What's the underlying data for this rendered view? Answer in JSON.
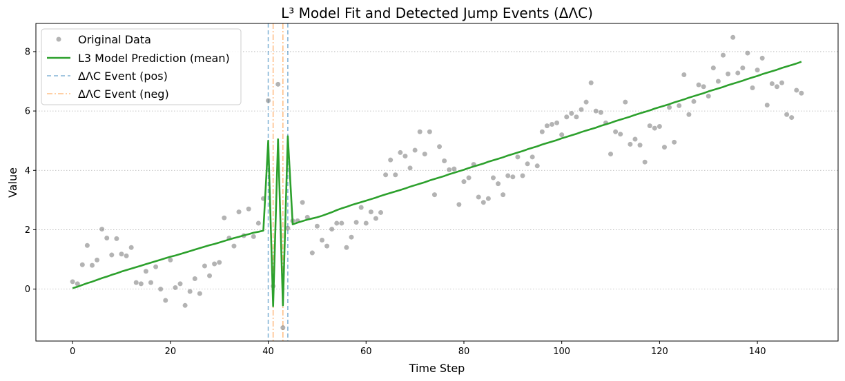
{
  "chart_data": {
    "type": "scatter+line",
    "title": "L³ Model Fit and Detected Jump Events (ΔΛC)",
    "xlabel": "Time Step",
    "ylabel": "Value",
    "xlim": [
      -7.5,
      156.5
    ],
    "ylim": [
      -1.75,
      8.95
    ],
    "xticks": [
      0,
      20,
      40,
      60,
      80,
      100,
      120,
      140
    ],
    "yticks": [
      0,
      2,
      4,
      6,
      8
    ],
    "grid": "horizontal-dotted",
    "legend_position": "top-left",
    "legend": [
      {
        "label": "Original Data",
        "style": "marker"
      },
      {
        "label": "L3 Model Prediction (mean)",
        "style": "line"
      },
      {
        "label": "ΔΛC Event (pos)",
        "style": "dashed"
      },
      {
        "label": "ΔΛC Event (neg)",
        "style": "dashdot"
      }
    ],
    "colors": {
      "scatter": "#808080",
      "model": "#2ca02c",
      "event_pos": "#1f77b4",
      "event_neg": "#ff7f0e"
    },
    "scatter": {
      "name": "Original Data",
      "x": [
        0,
        1,
        2,
        3,
        4,
        5,
        6,
        7,
        8,
        9,
        10,
        11,
        12,
        13,
        14,
        15,
        16,
        17,
        18,
        19,
        20,
        21,
        22,
        23,
        24,
        25,
        26,
        27,
        28,
        29,
        30,
        31,
        32,
        33,
        34,
        35,
        36,
        37,
        38,
        39,
        40,
        41,
        42,
        43,
        44,
        45,
        46,
        47,
        48,
        49,
        50,
        51,
        52,
        53,
        54,
        55,
        56,
        57,
        58,
        59,
        60,
        61,
        62,
        63,
        64,
        65,
        66,
        67,
        68,
        69,
        70,
        71,
        72,
        73,
        74,
        75,
        76,
        77,
        78,
        79,
        80,
        81,
        82,
        83,
        84,
        85,
        86,
        87,
        88,
        89,
        90,
        91,
        92,
        93,
        94,
        95,
        96,
        97,
        98,
        99,
        100,
        101,
        102,
        103,
        104,
        105,
        106,
        107,
        108,
        109,
        110,
        111,
        112,
        113,
        114,
        115,
        116,
        117,
        118,
        119,
        120,
        121,
        122,
        123,
        124,
        125,
        126,
        127,
        128,
        129,
        130,
        131,
        132,
        133,
        134,
        135,
        136,
        137,
        138,
        139,
        140,
        141,
        142,
        143,
        144,
        145,
        146,
        147,
        148,
        149
      ],
      "y": [
        0.25,
        0.18,
        0.82,
        1.47,
        0.8,
        0.98,
        2.02,
        1.72,
        1.15,
        1.7,
        1.18,
        1.12,
        1.4,
        0.22,
        0.18,
        0.6,
        0.22,
        0.75,
        0.0,
        -0.38,
        0.98,
        0.05,
        0.18,
        -0.55,
        -0.08,
        0.35,
        -0.15,
        0.78,
        0.45,
        0.85,
        0.9,
        2.4,
        1.72,
        1.45,
        2.6,
        1.8,
        2.7,
        1.77,
        2.22,
        3.05,
        6.35,
        0.1,
        6.9,
        -1.3,
        2.05,
        2.3,
        2.3,
        2.92,
        2.42,
        1.22,
        2.12,
        1.65,
        1.45,
        2.02,
        2.22,
        2.22,
        1.4,
        1.75,
        2.25,
        2.75,
        2.22,
        2.6,
        2.38,
        2.58,
        3.85,
        4.35,
        3.85,
        4.6,
        4.48,
        4.08,
        4.68,
        5.3,
        4.55,
        5.3,
        3.18,
        4.8,
        4.32,
        4.02,
        4.05,
        2.85,
        3.62,
        3.75,
        4.2,
        3.1,
        2.92,
        3.05,
        3.75,
        3.55,
        3.18,
        3.82,
        3.78,
        4.45,
        3.82,
        4.22,
        4.45,
        4.15,
        5.3,
        5.5,
        5.55,
        5.6,
        5.2,
        5.8,
        5.92,
        5.8,
        6.05,
        6.3,
        6.95,
        6.0,
        5.95,
        5.6,
        4.55,
        5.3,
        5.22,
        6.3,
        4.88,
        5.05,
        4.85,
        4.28,
        5.5,
        5.42,
        5.48,
        4.78,
        6.12,
        4.95,
        6.18,
        7.22,
        5.88,
        6.32,
        6.88,
        6.82,
        6.5,
        7.45,
        7.0,
        7.88,
        7.25,
        8.48,
        7.28,
        7.45,
        7.95,
        6.78,
        7.38,
        7.78,
        6.2,
        6.92,
        6.82,
        6.95,
        5.88,
        5.78,
        6.7,
        6.6
      ]
    },
    "model": {
      "name": "L3 Model Prediction (mean)",
      "x": [
        0,
        1,
        2,
        3,
        4,
        5,
        6,
        7,
        8,
        9,
        10,
        11,
        12,
        13,
        14,
        15,
        16,
        17,
        18,
        19,
        20,
        21,
        22,
        23,
        24,
        25,
        26,
        27,
        28,
        29,
        30,
        31,
        32,
        33,
        34,
        35,
        36,
        37,
        38,
        39,
        40,
        41,
        42,
        43,
        44,
        45,
        46,
        47,
        48,
        49,
        50,
        51,
        52,
        53,
        54,
        55,
        56,
        57,
        58,
        59,
        60,
        61,
        62,
        63,
        64,
        65,
        66,
        67,
        68,
        69,
        70,
        71,
        72,
        73,
        74,
        75,
        76,
        77,
        78,
        79,
        80,
        81,
        82,
        83,
        84,
        85,
        86,
        87,
        88,
        89,
        90,
        91,
        92,
        93,
        94,
        95,
        96,
        97,
        98,
        99,
        100,
        101,
        102,
        103,
        104,
        105,
        106,
        107,
        108,
        109,
        110,
        111,
        112,
        113,
        114,
        115,
        116,
        117,
        118,
        119,
        120,
        121,
        122,
        123,
        124,
        125,
        126,
        127,
        128,
        129,
        130,
        131,
        132,
        133,
        134,
        135,
        136,
        137,
        138,
        139,
        140,
        141,
        142,
        143,
        144,
        145,
        146,
        147,
        148,
        149
      ],
      "y": [
        0.03,
        0.08,
        0.14,
        0.2,
        0.25,
        0.31,
        0.37,
        0.42,
        0.48,
        0.53,
        0.59,
        0.64,
        0.69,
        0.74,
        0.79,
        0.84,
        0.89,
        0.94,
        0.99,
        1.04,
        1.09,
        1.13,
        1.18,
        1.23,
        1.28,
        1.33,
        1.38,
        1.43,
        1.48,
        1.52,
        1.57,
        1.62,
        1.67,
        1.72,
        1.76,
        1.81,
        1.85,
        1.9,
        1.93,
        1.97,
        5.0,
        -0.58,
        5.05,
        -0.55,
        5.15,
        2.18,
        2.24,
        2.29,
        2.34,
        2.38,
        2.42,
        2.47,
        2.53,
        2.59,
        2.66,
        2.72,
        2.77,
        2.83,
        2.88,
        2.93,
        2.98,
        3.03,
        3.08,
        3.14,
        3.19,
        3.24,
        3.29,
        3.34,
        3.39,
        3.45,
        3.5,
        3.55,
        3.6,
        3.66,
        3.71,
        3.76,
        3.81,
        3.87,
        3.92,
        3.97,
        4.02,
        4.08,
        4.13,
        4.18,
        4.23,
        4.29,
        4.34,
        4.39,
        4.44,
        4.5,
        4.55,
        4.6,
        4.65,
        4.71,
        4.76,
        4.81,
        4.87,
        4.92,
        4.97,
        5.02,
        5.08,
        5.13,
        5.18,
        5.23,
        5.29,
        5.34,
        5.39,
        5.44,
        5.5,
        5.55,
        5.6,
        5.66,
        5.71,
        5.76,
        5.81,
        5.87,
        5.92,
        5.97,
        6.02,
        6.08,
        6.13,
        6.18,
        6.23,
        6.29,
        6.34,
        6.39,
        6.45,
        6.5,
        6.55,
        6.6,
        6.66,
        6.71,
        6.76,
        6.81,
        6.87,
        6.92,
        6.97,
        7.02,
        7.08,
        7.13,
        7.18,
        7.24,
        7.29,
        7.34,
        7.39,
        7.45,
        7.5,
        7.55,
        7.6,
        7.66
      ]
    },
    "events_pos": [
      40,
      44
    ],
    "events_neg": [
      41,
      43
    ]
  }
}
